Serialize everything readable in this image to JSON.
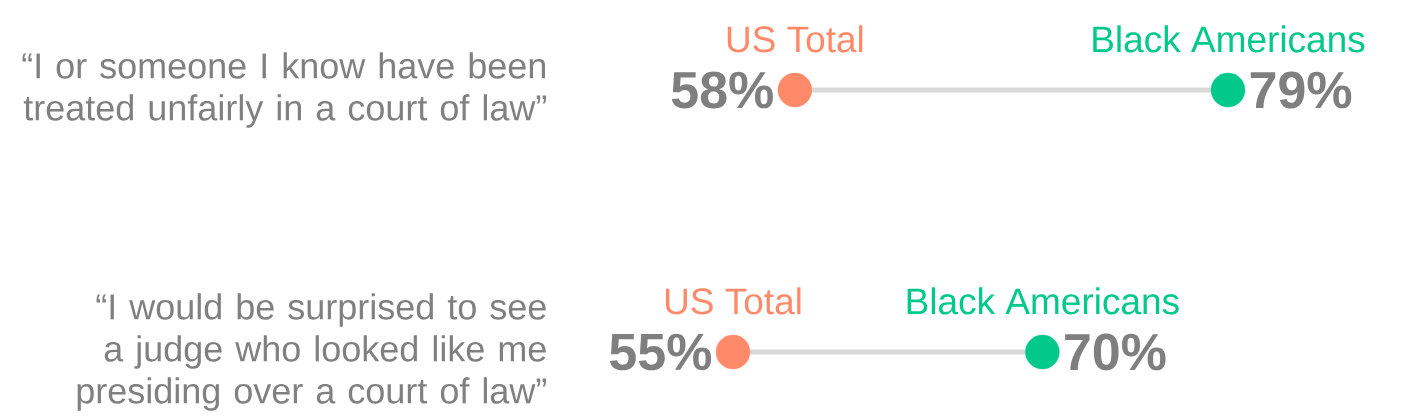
{
  "chart_data": {
    "type": "other",
    "categories": [
      "“I or someone I know have been treated unfairly in a court of law”",
      "“I would be surprised to see a judge who looked like me presiding over a court of law”"
    ],
    "series": [
      {
        "name": "US Total",
        "color": "#ff8a6a",
        "values": [
          58,
          55
        ],
        "value_labels": [
          "58%",
          "55%"
        ]
      },
      {
        "name": "Black Americans",
        "color": "#00c98a",
        "values": [
          79,
          70
        ],
        "value_labels": [
          "79%",
          "70%"
        ]
      }
    ]
  }
}
